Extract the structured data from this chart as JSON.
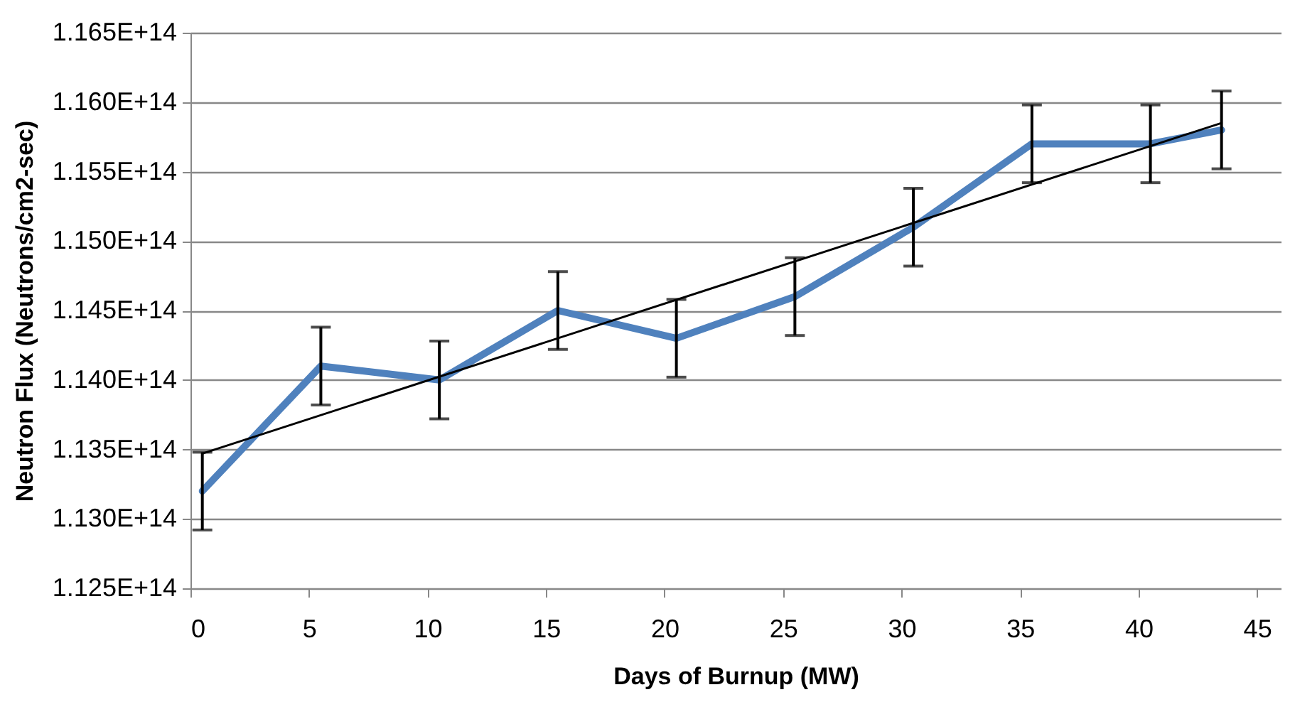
{
  "chart_data": {
    "type": "line",
    "xlabel": "Days of Burnup (MW)",
    "ylabel": "Neutron Flux (Neutrons/cm2-sec)",
    "xlim": [
      0,
      46
    ],
    "xticks": [
      0,
      5,
      10,
      15,
      20,
      25,
      30,
      35,
      40,
      45
    ],
    "ylim": [
      112500000000000,
      116500000000000
    ],
    "yticks": [
      {
        "value": 112500000000000,
        "label": "1.125E+14"
      },
      {
        "value": 113000000000000,
        "label": "1.130E+14"
      },
      {
        "value": 113500000000000,
        "label": "1.135E+14"
      },
      {
        "value": 114000000000000,
        "label": "1.140E+14"
      },
      {
        "value": 114500000000000,
        "label": "1.145E+14"
      },
      {
        "value": 115000000000000,
        "label": "1.150E+14"
      },
      {
        "value": 115500000000000,
        "label": "1.155E+14"
      },
      {
        "value": 116000000000000,
        "label": "1.160E+14"
      },
      {
        "value": 116500000000000,
        "label": "1.165E+14"
      }
    ],
    "grid": "y",
    "marker": "none",
    "series": [
      {
        "color": "#4f81bd",
        "x": [
          0.5,
          5.5,
          10.5,
          15.5,
          20.5,
          25.5,
          30.5,
          35.5,
          40.5,
          43.5
        ],
        "values": [
          113200000000000,
          114100000000000,
          114000000000000,
          114500000000000,
          114300000000000,
          114600000000000,
          115100000000000,
          115700000000000,
          115700000000000,
          115800000000000
        ],
        "errors": [
          280000000000,
          280000000000,
          280000000000,
          280000000000,
          280000000000,
          280000000000,
          280000000000,
          280000000000,
          280000000000,
          280000000000
        ]
      },
      {
        "color": "#000000",
        "x": [
          0.5,
          43.5
        ],
        "values": [
          113470000000000,
          115850000000000
        ]
      }
    ]
  }
}
